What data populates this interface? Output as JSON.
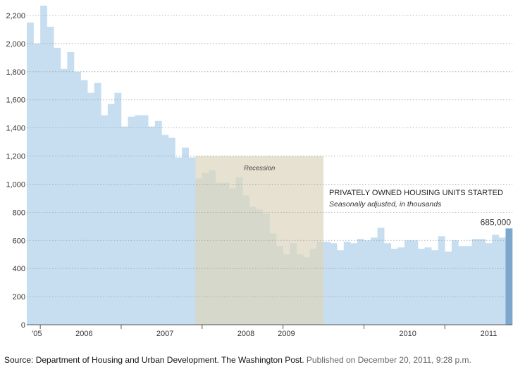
{
  "chart_data": {
    "type": "bar",
    "title": "PRIVATELY OWNED HOUSING UNITS STARTED",
    "subtitle": "Seasonally adjusted, in thousands",
    "ylim": [
      0,
      2200
    ],
    "yticks": [
      0,
      200,
      400,
      600,
      800,
      1000,
      1200,
      1400,
      1600,
      1800,
      2000,
      2200
    ],
    "ytick_labels": [
      "0",
      "200",
      "400",
      "600",
      "800",
      "1,000",
      "1,200",
      "1,400",
      "1,600",
      "1,800",
      "2,000",
      "2,200"
    ],
    "grid": true,
    "x_start": "2005-11",
    "x_labels": [
      {
        "label": "'05",
        "month": "2005-12"
      },
      {
        "label": "2006",
        "month": "2006-07"
      },
      {
        "label": "2007",
        "month": "2007-07"
      },
      {
        "label": "2008",
        "month": "2008-07"
      },
      {
        "label": "2009",
        "month": "2009-01"
      },
      {
        "label": "2010",
        "month": "2010-07"
      },
      {
        "label": "2011",
        "month": "2011-07"
      }
    ],
    "year_ticks": [
      "2006-01",
      "2007-01",
      "2008-01",
      "2009-01",
      "2010-01",
      "2011-01"
    ],
    "values": [
      2150,
      2000,
      2270,
      2120,
      1970,
      1820,
      1940,
      1800,
      1740,
      1650,
      1720,
      1490,
      1570,
      1650,
      1410,
      1480,
      1490,
      1490,
      1410,
      1450,
      1350,
      1330,
      1190,
      1260,
      1190,
      1040,
      1080,
      1100,
      1010,
      1010,
      970,
      1050,
      920,
      840,
      820,
      790,
      650,
      560,
      500,
      580,
      500,
      480,
      540,
      590,
      590,
      580,
      530,
      590,
      580,
      610,
      600,
      620,
      690,
      580,
      540,
      550,
      600,
      600,
      540,
      550,
      530,
      630,
      520,
      600,
      560,
      560,
      610,
      610,
      580,
      640,
      620,
      685
    ],
    "highlight_value": 685,
    "highlight_label": "685,000",
    "recession": {
      "label": "Recession",
      "start": "2007-12",
      "end": "2009-06"
    },
    "colors": {
      "bars": "#c6def0",
      "highlight": "#7da7cc",
      "recession": "#ddd6be",
      "grid": "#9aa3a8"
    }
  },
  "footer": {
    "source": "Source: Department of Housing and Urban Development. The Washington Post.",
    "published": "Published on December 20, 2011, 9:28 p.m."
  }
}
